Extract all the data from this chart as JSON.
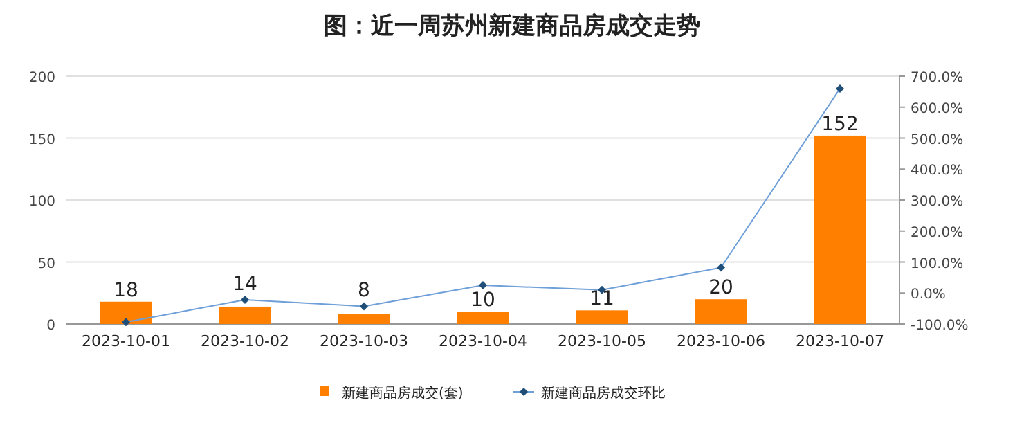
{
  "chart_data": {
    "type": "bar",
    "title": "图：近一周苏州新建商品房成交走势",
    "categories": [
      "2023-10-01",
      "2023-10-02",
      "2023-10-03",
      "2023-10-04",
      "2023-10-05",
      "2023-10-06",
      "2023-10-07"
    ],
    "series": [
      {
        "name": "新建商品房成交(套)",
        "color": "#ff8000",
        "values": [
          18,
          14,
          8,
          10,
          11,
          20,
          152
        ],
        "value_labels": [
          "18",
          "14",
          "8",
          "10",
          "11",
          "20",
          "152"
        ]
      },
      {
        "name": "新建商品房成交环比",
        "type": "line",
        "axis": "y2",
        "color": "#6f9fd8",
        "values": [
          -94,
          -22,
          -43,
          25,
          10,
          82,
          660
        ]
      }
    ],
    "ylim": [
      0,
      200
    ],
    "yticks": [
      0,
      50,
      100,
      150,
      200
    ],
    "y2lim": [
      -100,
      700
    ],
    "y2ticks": [
      {
        "value": -100,
        "label": "-100.0%"
      },
      {
        "value": 0,
        "label": "0.0%"
      },
      {
        "value": 100,
        "label": "100.0%"
      },
      {
        "value": 200,
        "label": "200.0%"
      },
      {
        "value": 300,
        "label": "300.0%"
      },
      {
        "value": 400,
        "label": "400.0%"
      },
      {
        "value": 500,
        "label": "500.0%"
      },
      {
        "value": 600,
        "label": "600.0%"
      },
      {
        "value": 700,
        "label": "700.0%"
      }
    ],
    "grid": "y",
    "legend": "bottom",
    "marker": "diamond",
    "line_style": "solid"
  }
}
